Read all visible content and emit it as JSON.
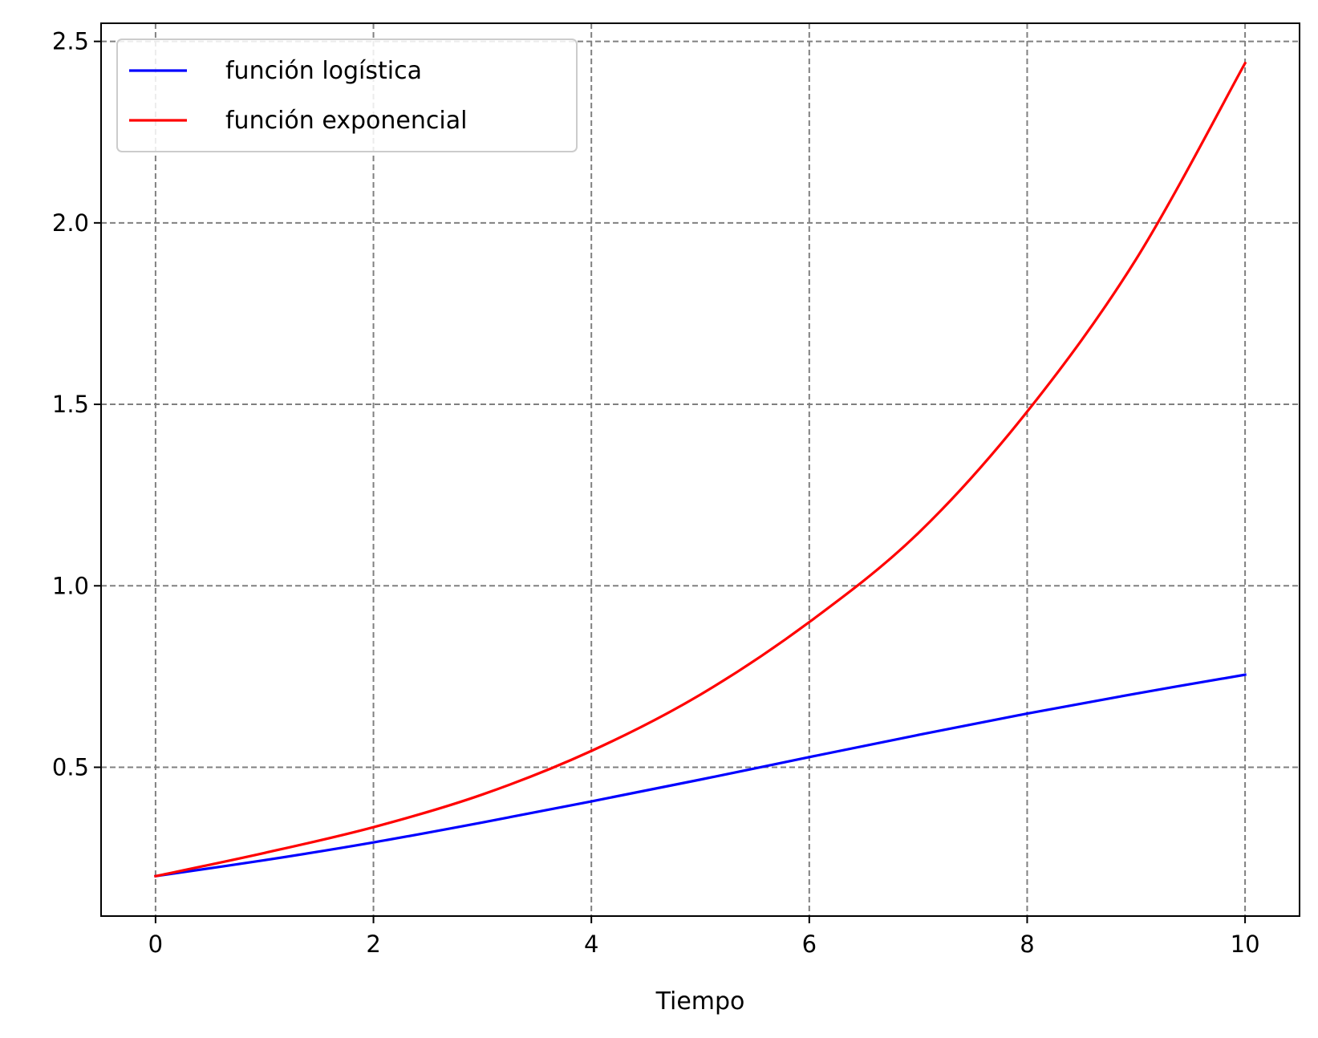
{
  "chart_data": {
    "type": "line",
    "title": "",
    "xlabel": "Tiempo",
    "ylabel": "",
    "xlim": [
      -0.5,
      10.5
    ],
    "ylim": [
      0.09,
      2.55
    ],
    "xticks": [
      0,
      2,
      4,
      6,
      8,
      10
    ],
    "xtick_labels": [
      "0",
      "2",
      "4",
      "6",
      "8",
      "10"
    ],
    "yticks": [
      0.5,
      1.0,
      1.5,
      2.0,
      2.5
    ],
    "ytick_labels": [
      "0.5",
      "1.0",
      "1.5",
      "2.0",
      "2.5"
    ],
    "grid": true,
    "legend_position": "top-left",
    "series": [
      {
        "name": "función logística",
        "color": "#0000ff",
        "x": [
          0,
          1,
          2,
          3,
          4,
          5,
          6,
          7,
          8,
          9,
          10
        ],
        "y": [
          0.2,
          0.244,
          0.293,
          0.348,
          0.406,
          0.466,
          0.528,
          0.589,
          0.648,
          0.703,
          0.755
        ]
      },
      {
        "name": "función exponencial",
        "color": "#ff0000",
        "x": [
          0,
          1,
          2,
          3,
          4,
          5,
          6,
          7,
          8,
          9,
          10
        ],
        "y": [
          0.2,
          0.264,
          0.335,
          0.425,
          0.545,
          0.7,
          0.9,
          1.145,
          1.48,
          1.9,
          2.44
        ]
      }
    ]
  }
}
